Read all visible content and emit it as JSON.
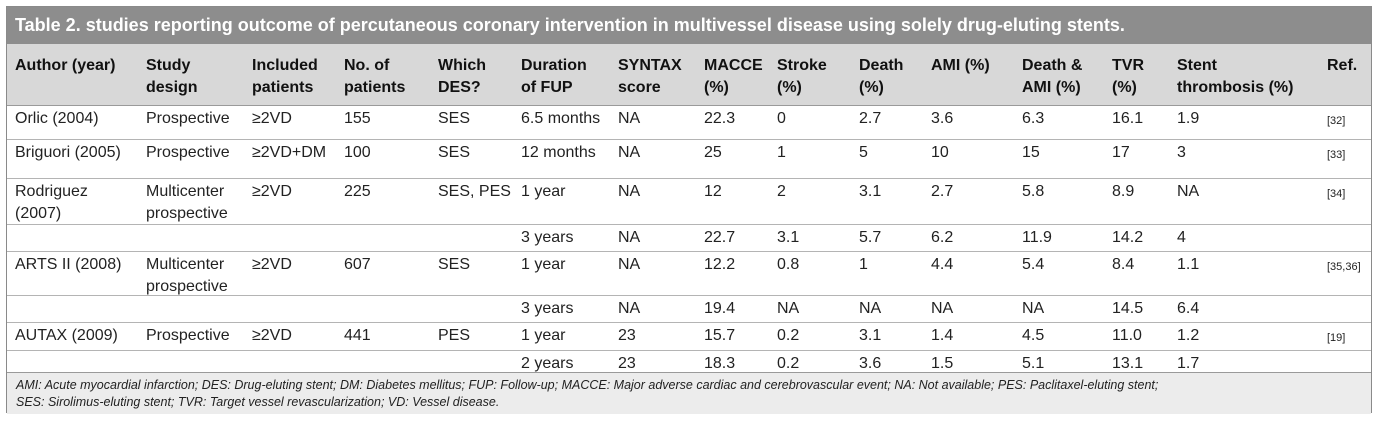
{
  "title": "Table 2. studies reporting outcome of percutaneous coronary intervention in multivessel disease using solely drug-eluting stents.",
  "columns": [
    "Author (year)",
    "Study\ndesign",
    "Included\npatients",
    "No. of\npatients",
    "Which\nDES?",
    "Duration\nof FUP",
    "SYNTAX\nscore",
    "MACCE\n(%)",
    "Stroke\n(%)",
    "Death\n(%)",
    "AMI (%)",
    "Death &\nAMI (%)",
    "TVR\n(%)",
    "Stent\nthrombosis (%)",
    "Ref."
  ],
  "rows": [
    {
      "cells": [
        "Orlic (2004)",
        "Prospective",
        "≥2VD",
        "155",
        "SES",
        "6.5 months",
        "NA",
        "22.3",
        "0",
        "2.7",
        "3.6",
        "6.3",
        "16.1",
        "1.9",
        "[32]"
      ]
    },
    {
      "cells": [
        "Briguori (2005)",
        "Prospective",
        "≥2VD+DM",
        "100",
        "SES",
        "12 months",
        "NA",
        "25",
        "1",
        "5",
        "10",
        "15",
        "17",
        "3",
        "[33]"
      ]
    },
    {
      "cells": [
        "Rodriguez\n(2007)",
        "Multicenter\nprospective",
        "≥2VD",
        "225",
        "SES, PES",
        "1 year",
        "NA",
        "12",
        "2",
        "3.1",
        "2.7",
        "5.8",
        "8.9",
        "NA",
        "[34]"
      ]
    },
    {
      "cells": [
        "",
        "",
        "",
        "",
        "",
        "3 years",
        "NA",
        "22.7",
        "3.1",
        "5.7",
        "6.2",
        "11.9",
        "14.2",
        "4",
        ""
      ]
    },
    {
      "cells": [
        "ARTS II (2008)",
        "Multicenter\nprospective",
        "≥2VD",
        "607",
        "SES",
        "1 year",
        "NA",
        "12.2",
        "0.8",
        "1",
        "4.4",
        "5.4",
        "8.4",
        "1.1",
        "[35,36]"
      ]
    },
    {
      "cells": [
        "",
        "",
        "",
        "",
        "",
        "3 years",
        "NA",
        "19.4",
        "NA",
        "NA",
        "NA",
        "NA",
        "14.5",
        "6.4",
        ""
      ]
    },
    {
      "cells": [
        "AUTAX (2009)",
        "Prospective",
        "≥2VD",
        "441",
        "PES",
        "1 year",
        "23",
        "15.7",
        "0.2",
        "3.1",
        "1.4",
        "4.5",
        "11.0",
        "1.2",
        "[19]"
      ]
    },
    {
      "cells": [
        "",
        "",
        "",
        "",
        "",
        "2 years",
        "23",
        "18.3",
        "0.2",
        "3.6",
        "1.5",
        "5.1",
        "13.1",
        "1.7",
        ""
      ]
    }
  ],
  "footnote": {
    "line1": "AMI: Acute myocardial infarction; DES: Drug-eluting stent; DM: Diabetes mellitus; FUP: Follow-up; MACCE: Major adverse cardiac and cerebrovascular event; NA: Not available; PES: Paclitaxel-eluting stent;",
    "line2": "SES: Sirolimus-eluting stent; TVR: Target vessel revascularization; VD: Vessel disease."
  }
}
